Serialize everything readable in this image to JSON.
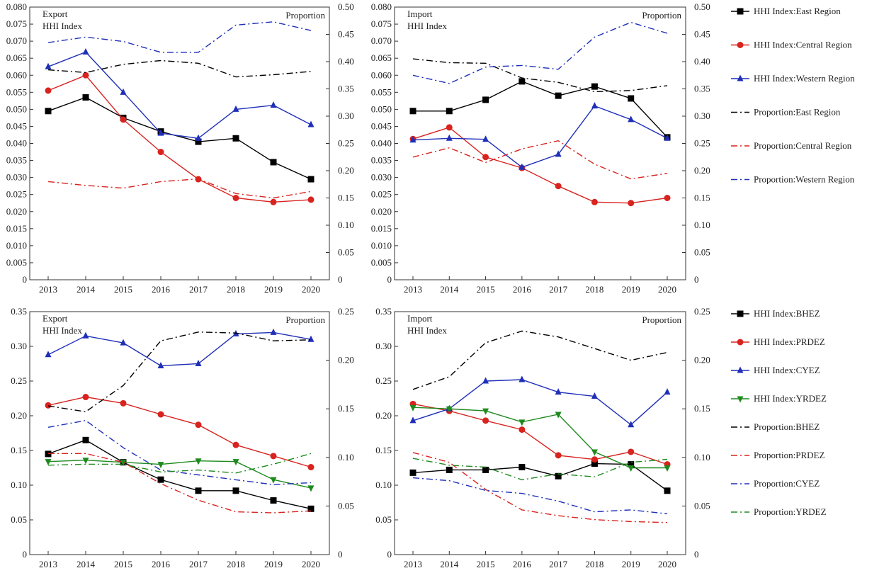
{
  "chart_data": [
    {
      "type": "line",
      "title": "",
      "left_label_1": "Export",
      "left_label_2": "HHI Index",
      "right_label": "Proportion",
      "categories": [
        "2013",
        "2014",
        "2015",
        "2016",
        "2017",
        "2018",
        "2019",
        "2020"
      ],
      "ylim_left": [
        0,
        0.08
      ],
      "yticks_left": [
        "0",
        "0.005",
        "0.010",
        "0.015",
        "0.020",
        "0.025",
        "0.030",
        "0.035",
        "0.040",
        "0.045",
        "0.050",
        "0.055",
        "0.060",
        "0.065",
        "0.070",
        "0.075",
        "0.080"
      ],
      "ylim_right": [
        0,
        0.5
      ],
      "yticks_right": [
        "0",
        "0.05",
        "0.10",
        "0.15",
        "0.20",
        "0.25",
        "0.30",
        "0.35",
        "0.40",
        "0.45",
        "0.50"
      ],
      "series": [
        {
          "name": "HHI Index:East Region",
          "axis": "left",
          "style": "solid",
          "marker": "square",
          "color": "#000000",
          "values": [
            0.0495,
            0.0535,
            0.0475,
            0.0435,
            0.0405,
            0.0415,
            0.0345,
            0.0295
          ]
        },
        {
          "name": "HHI Index:Central Region",
          "axis": "left",
          "style": "solid",
          "marker": "circle",
          "color": "#d8231f",
          "values": [
            0.0555,
            0.06,
            0.047,
            0.0375,
            0.0295,
            0.024,
            0.0228,
            0.0235
          ]
        },
        {
          "name": "HHI Index:Western Region",
          "axis": "left",
          "style": "solid",
          "marker": "triangle",
          "color": "#1f2fb8",
          "values": [
            0.0625,
            0.0668,
            0.055,
            0.043,
            0.0415,
            0.05,
            0.0512,
            0.0455
          ]
        },
        {
          "name": "Proportion:East Region",
          "axis": "right",
          "style": "dashdot",
          "marker": "none",
          "color": "#000000",
          "values": [
            0.385,
            0.38,
            0.395,
            0.402,
            0.397,
            0.372,
            0.376,
            0.382
          ]
        },
        {
          "name": "Proportion:Central Region",
          "axis": "right",
          "style": "dashdot",
          "marker": "none",
          "color": "#d8231f",
          "values": [
            0.18,
            0.173,
            0.168,
            0.18,
            0.185,
            0.158,
            0.15,
            0.162
          ]
        },
        {
          "name": "Proportion:Western Region",
          "axis": "right",
          "style": "dashdot",
          "marker": "none",
          "color": "#1f2fb8",
          "values": [
            0.435,
            0.445,
            0.437,
            0.417,
            0.417,
            0.467,
            0.473,
            0.457
          ]
        }
      ]
    },
    {
      "type": "line",
      "title": "",
      "left_label_1": "Import",
      "left_label_2": "HHI Index",
      "right_label": "Proportion",
      "categories": [
        "2013",
        "2014",
        "2015",
        "2016",
        "2017",
        "2018",
        "2019",
        "2020"
      ],
      "ylim_left": [
        0,
        0.08
      ],
      "yticks_left": [
        "0",
        "0.005",
        "0.010",
        "0.015",
        "0.020",
        "0.025",
        "0.030",
        "0.035",
        "0.040",
        "0.045",
        "0.050",
        "0.055",
        "0.060",
        "0.065",
        "0.070",
        "0.075",
        "0.080"
      ],
      "ylim_right": [
        0,
        0.5
      ],
      "yticks_right": [
        "0",
        "0.05",
        "0.10",
        "0.15",
        "0.20",
        "0.25",
        "0.30",
        "0.35",
        "0.40",
        "0.45",
        "0.50"
      ],
      "series": [
        {
          "name": "HHI Index:East Region",
          "axis": "left",
          "style": "solid",
          "marker": "square",
          "color": "#000000",
          "values": [
            0.0495,
            0.0495,
            0.0528,
            0.0582,
            0.054,
            0.0567,
            0.0532,
            0.0418
          ]
        },
        {
          "name": "HHI Index:Central Region",
          "axis": "left",
          "style": "solid",
          "marker": "circle",
          "color": "#d8231f",
          "values": [
            0.0413,
            0.0447,
            0.036,
            0.0328,
            0.0275,
            0.0228,
            0.0225,
            0.024
          ]
        },
        {
          "name": "HHI Index:Western Region",
          "axis": "left",
          "style": "solid",
          "marker": "triangle",
          "color": "#1f2fb8",
          "values": [
            0.041,
            0.0415,
            0.0412,
            0.033,
            0.0368,
            0.051,
            0.047,
            0.0415
          ]
        },
        {
          "name": "Proportion:East Region",
          "axis": "right",
          "style": "dashdot",
          "marker": "none",
          "color": "#000000",
          "values": [
            0.405,
            0.398,
            0.397,
            0.37,
            0.362,
            0.345,
            0.347,
            0.356
          ]
        },
        {
          "name": "Proportion:Central Region",
          "axis": "right",
          "style": "dashdot",
          "marker": "none",
          "color": "#d8231f",
          "values": [
            0.225,
            0.242,
            0.215,
            0.24,
            0.255,
            0.212,
            0.185,
            0.195
          ]
        },
        {
          "name": "Proportion:Western Region",
          "axis": "right",
          "style": "dashdot",
          "marker": "none",
          "color": "#1f2fb8",
          "values": [
            0.375,
            0.36,
            0.39,
            0.393,
            0.386,
            0.445,
            0.472,
            0.452
          ]
        }
      ]
    },
    {
      "type": "line",
      "title": "",
      "left_label_1": "Export",
      "left_label_2": "HHI Index",
      "right_label": "Proportion",
      "categories": [
        "2013",
        "2014",
        "2015",
        "2016",
        "2017",
        "2018",
        "2019",
        "2020"
      ],
      "ylim_left": [
        0,
        0.35
      ],
      "yticks_left": [
        "0",
        "0.05",
        "0.10",
        "0.15",
        "0.20",
        "0.25",
        "0.30",
        "0.35"
      ],
      "ylim_right": [
        0,
        0.25
      ],
      "yticks_right": [
        "0",
        "0.05",
        "0.10",
        "0.15",
        "0.20",
        "0.25"
      ],
      "series": [
        {
          "name": "HHI Index:BHEZ",
          "axis": "left",
          "style": "solid",
          "marker": "square",
          "color": "#000000",
          "values": [
            0.145,
            0.165,
            0.133,
            0.108,
            0.092,
            0.092,
            0.078,
            0.066
          ]
        },
        {
          "name": "HHI Index:PRDEZ",
          "axis": "left",
          "style": "solid",
          "marker": "circle",
          "color": "#d8231f",
          "values": [
            0.215,
            0.227,
            0.218,
            0.202,
            0.187,
            0.158,
            0.142,
            0.126
          ]
        },
        {
          "name": "HHI Index:CYEZ",
          "axis": "left",
          "style": "solid",
          "marker": "triangle",
          "color": "#1f2fb8",
          "values": [
            0.288,
            0.315,
            0.305,
            0.272,
            0.275,
            0.318,
            0.32,
            0.31
          ]
        },
        {
          "name": "HHI Index:YRDEZ",
          "axis": "left",
          "style": "solid",
          "marker": "triangle-down",
          "color": "#1e8a1e",
          "values": [
            0.134,
            0.136,
            0.133,
            0.13,
            0.135,
            0.134,
            0.108,
            0.096
          ]
        },
        {
          "name": "Proportion:BHEZ",
          "axis": "right",
          "style": "dashdot",
          "marker": "none",
          "color": "#000000",
          "values": [
            0.153,
            0.147,
            0.174,
            0.22,
            0.229,
            0.228,
            0.22,
            0.221
          ]
        },
        {
          "name": "Proportion:PRDEZ",
          "axis": "right",
          "style": "dashdot",
          "marker": "none",
          "color": "#d8231f",
          "values": [
            0.104,
            0.104,
            0.095,
            0.073,
            0.056,
            0.044,
            0.043,
            0.045
          ]
        },
        {
          "name": "Proportion:CYEZ",
          "axis": "right",
          "style": "dashdot",
          "marker": "none",
          "color": "#1f2fb8",
          "values": [
            0.131,
            0.138,
            0.11,
            0.087,
            0.082,
            0.077,
            0.072,
            0.074
          ]
        },
        {
          "name": "Proportion:YRDEZ",
          "axis": "right",
          "style": "dashdot",
          "marker": "none",
          "color": "#1e8a1e",
          "values": [
            0.092,
            0.093,
            0.093,
            0.085,
            0.087,
            0.084,
            0.093,
            0.104
          ]
        }
      ]
    },
    {
      "type": "line",
      "title": "",
      "left_label_1": "Import",
      "left_label_2": "HHI Index",
      "right_label": "Proportion",
      "categories": [
        "2013",
        "2014",
        "2015",
        "2016",
        "2017",
        "2018",
        "2019",
        "2020"
      ],
      "ylim_left": [
        0,
        0.35
      ],
      "yticks_left": [
        "0",
        "0.05",
        "0.10",
        "0.15",
        "0.20",
        "0.25",
        "0.30",
        "0.35"
      ],
      "ylim_right": [
        0,
        0.25
      ],
      "yticks_right": [
        "0",
        "0.05",
        "0.10",
        "0.15",
        "0.20",
        "0.25"
      ],
      "series": [
        {
          "name": "HHI Index:BHEZ",
          "axis": "left",
          "style": "solid",
          "marker": "square",
          "color": "#000000",
          "values": [
            0.118,
            0.122,
            0.122,
            0.126,
            0.113,
            0.131,
            0.13,
            0.092
          ]
        },
        {
          "name": "HHI Index:PRDEZ",
          "axis": "left",
          "style": "solid",
          "marker": "circle",
          "color": "#d8231f",
          "values": [
            0.217,
            0.207,
            0.193,
            0.18,
            0.143,
            0.137,
            0.148,
            0.13
          ]
        },
        {
          "name": "HHI Index:CYEZ",
          "axis": "left",
          "style": "solid",
          "marker": "triangle",
          "color": "#1f2fb8",
          "values": [
            0.193,
            0.21,
            0.25,
            0.252,
            0.234,
            0.228,
            0.187,
            0.234
          ]
        },
        {
          "name": "HHI Index:YRDEZ",
          "axis": "left",
          "style": "solid",
          "marker": "triangle-down",
          "color": "#1e8a1e",
          "values": [
            0.212,
            0.21,
            0.207,
            0.191,
            0.202,
            0.148,
            0.125,
            0.125
          ]
        },
        {
          "name": "Proportion:BHEZ",
          "axis": "right",
          "style": "dashdot",
          "marker": "none",
          "color": "#000000",
          "values": [
            0.17,
            0.183,
            0.218,
            0.23,
            0.224,
            0.212,
            0.2,
            0.208
          ]
        },
        {
          "name": "Proportion:PRDEZ",
          "axis": "right",
          "style": "dashdot",
          "marker": "none",
          "color": "#d8231f",
          "values": [
            0.105,
            0.095,
            0.067,
            0.046,
            0.04,
            0.036,
            0.034,
            0.033
          ]
        },
        {
          "name": "Proportion:CYEZ",
          "axis": "right",
          "style": "dashdot",
          "marker": "none",
          "color": "#1f2fb8",
          "values": [
            0.079,
            0.076,
            0.066,
            0.063,
            0.055,
            0.044,
            0.046,
            0.042
          ]
        },
        {
          "name": "Proportion:YRDEZ",
          "axis": "right",
          "style": "dashdot",
          "marker": "none",
          "color": "#1e8a1e",
          "values": [
            0.099,
            0.092,
            0.09,
            0.077,
            0.083,
            0.08,
            0.095,
            0.098
          ]
        }
      ]
    }
  ],
  "legends": [
    {
      "items": [
        {
          "label": "HHI Index:East Region",
          "color": "#000000",
          "style": "solid",
          "marker": "square"
        },
        {
          "label": "HHI Index:Central Region",
          "color": "#d8231f",
          "style": "solid",
          "marker": "circle"
        },
        {
          "label": "HHI Index:Western Region",
          "color": "#1f2fb8",
          "style": "solid",
          "marker": "triangle"
        },
        {
          "label": "Proportion:East Region",
          "color": "#000000",
          "style": "dashdot",
          "marker": "none"
        },
        {
          "label": "Proportion:Central Region",
          "color": "#d8231f",
          "style": "dashdot",
          "marker": "none"
        },
        {
          "label": "Proportion:Western Region",
          "color": "#1f2fb8",
          "style": "dashdot",
          "marker": "none"
        }
      ]
    },
    {
      "items": [
        {
          "label": "HHI Index:BHEZ",
          "color": "#000000",
          "style": "solid",
          "marker": "square"
        },
        {
          "label": "HHI Index:PRDEZ",
          "color": "#d8231f",
          "style": "solid",
          "marker": "circle"
        },
        {
          "label": "HHI Index:CYEZ",
          "color": "#1f2fb8",
          "style": "solid",
          "marker": "triangle"
        },
        {
          "label": "HHI Index:YRDEZ",
          "color": "#1e8a1e",
          "style": "solid",
          "marker": "triangle-down"
        },
        {
          "label": "Proportion:BHEZ",
          "color": "#000000",
          "style": "dashdot",
          "marker": "none"
        },
        {
          "label": "Proportion:PRDEZ",
          "color": "#d8231f",
          "style": "dashdot",
          "marker": "none"
        },
        {
          "label": "Proportion:CYEZ",
          "color": "#1f2fb8",
          "style": "dashdot",
          "marker": "none"
        },
        {
          "label": "Proportion:YRDEZ",
          "color": "#1e8a1e",
          "style": "dashdot",
          "marker": "none"
        }
      ]
    }
  ]
}
